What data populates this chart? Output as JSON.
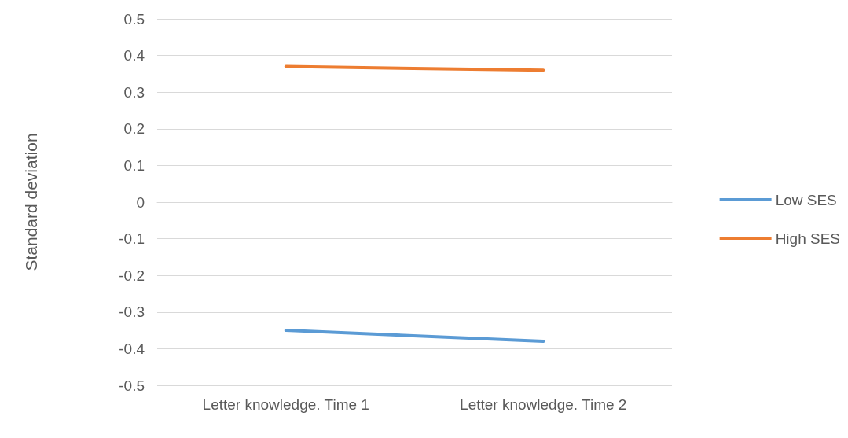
{
  "chart_data": {
    "type": "line",
    "ylabel": "Standard deviation",
    "categories": [
      "Letter knowledge. Time 1",
      "Letter knowledge. Time 2"
    ],
    "series": [
      {
        "name": "Low SES",
        "color": "#5b9bd5",
        "values": [
          -0.35,
          -0.38
        ]
      },
      {
        "name": "High SES",
        "color": "#ed7d31",
        "values": [
          0.37,
          0.36
        ]
      }
    ],
    "ylim": [
      -0.5,
      0.5
    ],
    "yticks": [
      -0.5,
      -0.4,
      -0.3,
      -0.2,
      -0.1,
      0,
      0.1,
      0.2,
      0.3,
      0.4,
      0.5
    ],
    "grid": "y",
    "legend": "right",
    "marker": "none",
    "line_style": "solid"
  }
}
